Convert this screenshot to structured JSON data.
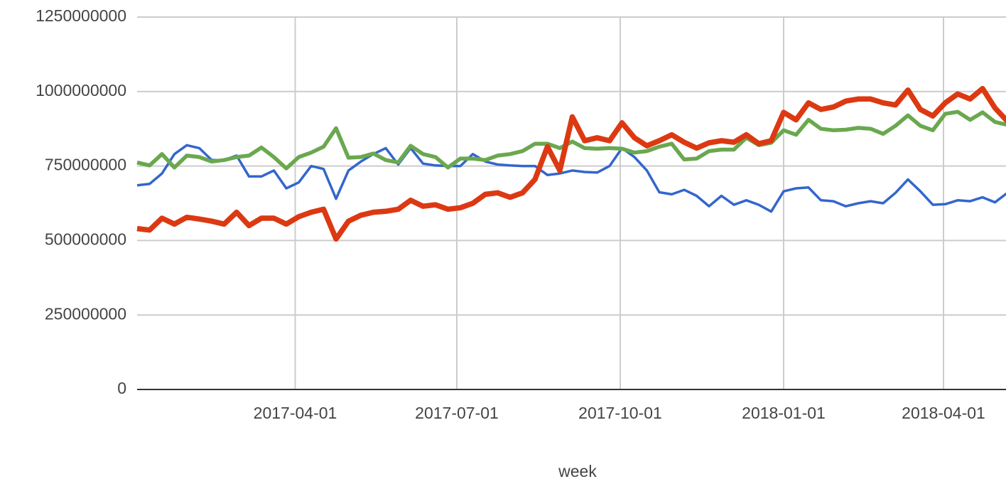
{
  "chart_data": {
    "type": "line",
    "x_label": "week",
    "x": [
      "2017-01-02",
      "2017-01-09",
      "2017-01-16",
      "2017-01-23",
      "2017-01-30",
      "2017-02-06",
      "2017-02-13",
      "2017-02-20",
      "2017-02-27",
      "2017-03-06",
      "2017-03-13",
      "2017-03-20",
      "2017-03-27",
      "2017-04-03",
      "2017-04-10",
      "2017-04-17",
      "2017-04-24",
      "2017-05-01",
      "2017-05-08",
      "2017-05-15",
      "2017-05-22",
      "2017-05-29",
      "2017-06-05",
      "2017-06-12",
      "2017-06-19",
      "2017-06-26",
      "2017-07-03",
      "2017-07-10",
      "2017-07-17",
      "2017-07-24",
      "2017-07-31",
      "2017-08-07",
      "2017-08-14",
      "2017-08-21",
      "2017-08-28",
      "2017-09-04",
      "2017-09-11",
      "2017-09-18",
      "2017-09-25",
      "2017-10-02",
      "2017-10-09",
      "2017-10-16",
      "2017-10-23",
      "2017-10-30",
      "2017-11-06",
      "2017-11-13",
      "2017-11-20",
      "2017-11-27",
      "2017-12-04",
      "2017-12-11",
      "2017-12-18",
      "2017-12-25",
      "2018-01-01",
      "2018-01-08",
      "2018-01-15",
      "2018-01-22",
      "2018-01-29",
      "2018-02-05",
      "2018-02-12",
      "2018-02-19",
      "2018-02-26",
      "2018-03-05",
      "2018-03-12",
      "2018-03-19",
      "2018-03-26",
      "2018-04-02",
      "2018-04-09",
      "2018-04-16",
      "2018-04-23",
      "2018-04-30",
      "2018-05-07"
    ],
    "xlim": [
      "2017-01-02",
      "2018-05-07"
    ],
    "xticks": [
      "2017-04-01",
      "2017-07-01",
      "2017-10-01",
      "2018-01-01",
      "2018-04-01"
    ],
    "ylim": [
      0,
      1250000000
    ],
    "yticks": [
      0,
      250000000,
      500000000,
      750000000,
      1000000000,
      1250000000
    ],
    "grid": true,
    "series": [
      {
        "color": "#3366cc",
        "values": [
          685000000,
          690000000,
          725000000,
          790000000,
          820000000,
          810000000,
          770000000,
          770000000,
          785000000,
          715000000,
          715000000,
          735000000,
          675000000,
          695000000,
          750000000,
          740000000,
          640000000,
          735000000,
          765000000,
          790000000,
          810000000,
          755000000,
          810000000,
          758000000,
          752000000,
          750000000,
          750000000,
          790000000,
          765000000,
          755000000,
          752000000,
          750000000,
          750000000,
          720000000,
          725000000,
          735000000,
          730000000,
          728000000,
          750000000,
          810000000,
          780000000,
          735000000,
          662000000,
          655000000,
          670000000,
          650000000,
          615000000,
          650000000,
          620000000,
          635000000,
          620000000,
          597000000,
          665000000,
          675000000,
          678000000,
          635000000,
          632000000,
          615000000,
          625000000,
          632000000,
          625000000,
          660000000,
          705000000,
          665000000,
          620000000,
          622000000,
          635000000,
          632000000,
          645000000,
          628000000,
          660000000
        ]
      },
      {
        "color": "#6aa84f",
        "values": [
          762000000,
          752000000,
          790000000,
          745000000,
          785000000,
          780000000,
          765000000,
          770000000,
          780000000,
          785000000,
          812000000,
          780000000,
          742000000,
          780000000,
          795000000,
          815000000,
          877000000,
          778000000,
          780000000,
          792000000,
          770000000,
          762000000,
          818000000,
          790000000,
          780000000,
          745000000,
          775000000,
          775000000,
          770000000,
          785000000,
          790000000,
          800000000,
          825000000,
          825000000,
          810000000,
          832000000,
          810000000,
          808000000,
          810000000,
          808000000,
          795000000,
          800000000,
          815000000,
          825000000,
          772000000,
          775000000,
          800000000,
          805000000,
          805000000,
          845000000,
          820000000,
          828000000,
          870000000,
          855000000,
          905000000,
          875000000,
          870000000,
          872000000,
          878000000,
          875000000,
          858000000,
          885000000,
          920000000,
          885000000,
          870000000,
          925000000,
          932000000,
          905000000,
          930000000,
          898000000,
          888000000
        ]
      },
      {
        "color": "#dc3912",
        "values": [
          540000000,
          535000000,
          575000000,
          555000000,
          578000000,
          572000000,
          565000000,
          555000000,
          595000000,
          550000000,
          575000000,
          575000000,
          555000000,
          580000000,
          595000000,
          605000000,
          505000000,
          565000000,
          585000000,
          595000000,
          598000000,
          605000000,
          635000000,
          615000000,
          620000000,
          605000000,
          610000000,
          625000000,
          655000000,
          660000000,
          645000000,
          660000000,
          705000000,
          815000000,
          735000000,
          915000000,
          835000000,
          845000000,
          835000000,
          895000000,
          845000000,
          818000000,
          835000000,
          855000000,
          830000000,
          810000000,
          828000000,
          835000000,
          830000000,
          855000000,
          825000000,
          835000000,
          930000000,
          905000000,
          962000000,
          940000000,
          948000000,
          968000000,
          975000000,
          975000000,
          962000000,
          955000000,
          1005000000,
          940000000,
          918000000,
          962000000,
          992000000,
          975000000,
          1010000000,
          945000000,
          900000000
        ]
      }
    ]
  }
}
